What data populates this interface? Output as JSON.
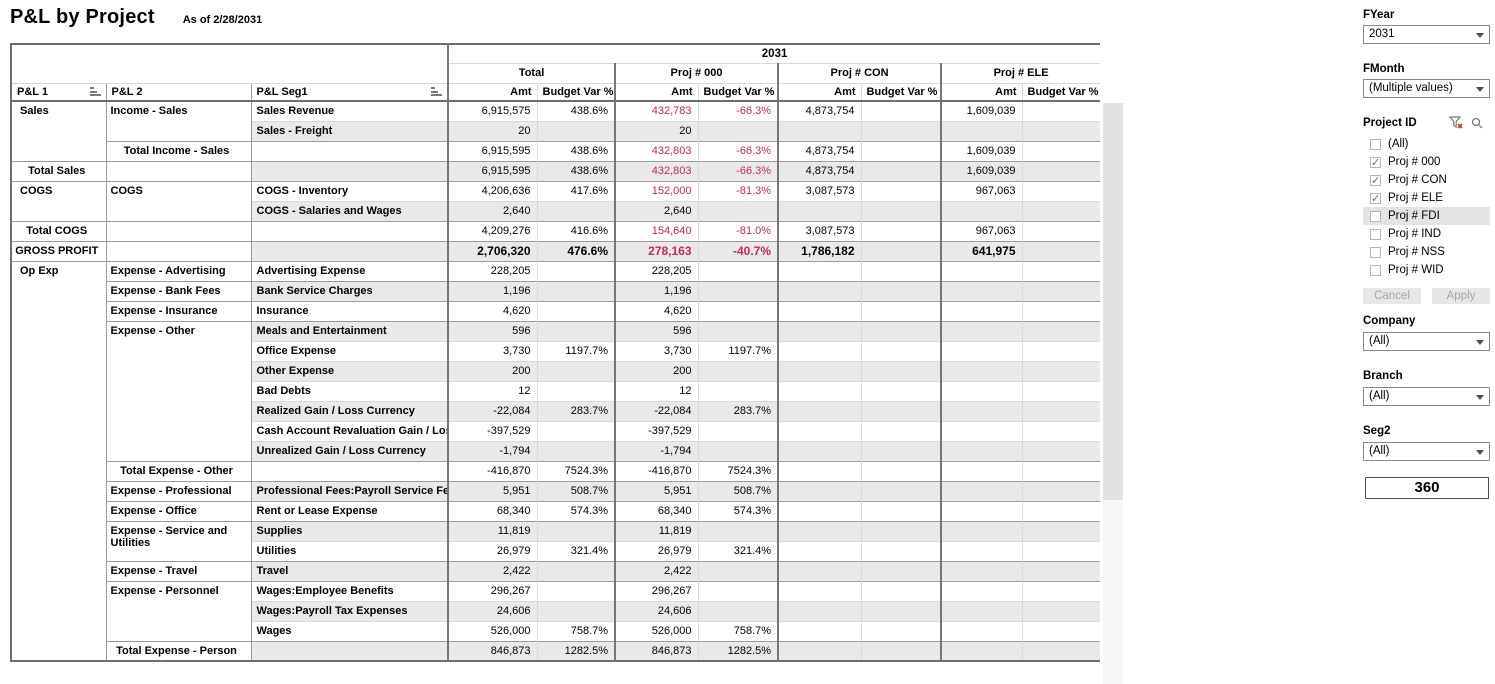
{
  "title": "P&L by Project",
  "subtitle": "As of 2/28/2031",
  "colors": {
    "negative": "#c42c50",
    "band": "#e9e9e9",
    "accent_border": "#767676"
  },
  "table": {
    "year_header": "2031",
    "row_headers": [
      "P&L 1",
      "P&L 2",
      "P&L Seg1"
    ],
    "col_groups": [
      "Total",
      "Proj # 000",
      "Proj # CON",
      "Proj # ELE"
    ],
    "measure_headers": [
      "Amt",
      "Budget Var %"
    ],
    "rows": [
      {
        "pl1": "Sales",
        "pl1_span": 3,
        "pl2": "Income - Sales",
        "pl2_span": 2,
        "seg1": "Sales Revenue",
        "type": "data",
        "shade": false,
        "border": "none",
        "cells": [
          "6,915,575",
          "438.6%",
          "432,783",
          "-66.3%",
          "4,873,754",
          "",
          "1,609,039",
          ""
        ],
        "red": [
          2,
          3
        ]
      },
      {
        "seg1": "Sales - Freight",
        "type": "data",
        "shade": true,
        "border": "none",
        "cells": [
          "20",
          "",
          "20",
          "",
          "",
          "",
          "",
          ""
        ],
        "red": []
      },
      {
        "pl2": "Total  Income - Sales",
        "type": "total2",
        "shade": false,
        "border": "group",
        "cells": [
          "6,915,595",
          "438.6%",
          "432,803",
          "-66.3%",
          "4,873,754",
          "",
          "1,609,039",
          ""
        ],
        "red": [
          2,
          3
        ]
      },
      {
        "pl1": "Total Sales",
        "type": "total1",
        "shade": true,
        "border": "group",
        "cells": [
          "6,915,595",
          "438.6%",
          "432,803",
          "-66.3%",
          "4,873,754",
          "",
          "1,609,039",
          ""
        ],
        "red": [
          2,
          3
        ]
      },
      {
        "pl1": "COGS",
        "pl1_span": 2,
        "pl2": "COGS",
        "pl2_span": 2,
        "seg1": "COGS - Inventory",
        "type": "data",
        "shade": false,
        "border": "group",
        "cells": [
          "4,206,636",
          "417.6%",
          "152,000",
          "-81.3%",
          "3,087,573",
          "",
          "967,063",
          ""
        ],
        "red": [
          2,
          3
        ]
      },
      {
        "seg1": "COGS - Salaries and Wages",
        "type": "data",
        "shade": true,
        "border": "none",
        "cells": [
          "2,640",
          "",
          "2,640",
          "",
          "",
          "",
          "",
          ""
        ],
        "red": []
      },
      {
        "pl1": "Total COGS",
        "type": "total1",
        "shade": false,
        "border": "group",
        "cells": [
          "4,209,276",
          "416.6%",
          "154,640",
          "-81.0%",
          "3,087,573",
          "",
          "967,063",
          ""
        ],
        "red": [
          2,
          3
        ]
      },
      {
        "pl1": "GROSS PROFIT",
        "type": "gross",
        "shade": true,
        "border": "group",
        "cells": [
          "2,706,320",
          "476.6%",
          "278,163",
          "-40.7%",
          "1,786,182",
          "",
          "641,975",
          ""
        ],
        "red": [
          2,
          3
        ]
      },
      {
        "pl1": "Op Exp",
        "pl1_span": 20,
        "pl2": "Expense - Advertising",
        "pl2_span": 1,
        "seg1": "Advertising Expense",
        "type": "data",
        "shade": false,
        "border": "group",
        "cells": [
          "228,205",
          "",
          "228,205",
          "",
          "",
          "",
          "",
          ""
        ],
        "red": []
      },
      {
        "pl2": "Expense - Bank Fees",
        "pl2_span": 1,
        "seg1": "Bank Service Charges",
        "type": "data",
        "shade": true,
        "border": "group",
        "cells": [
          "1,196",
          "",
          "1,196",
          "",
          "",
          "",
          "",
          ""
        ],
        "red": []
      },
      {
        "pl2": "Expense - Insurance",
        "pl2_span": 1,
        "seg1": "Insurance",
        "type": "data",
        "shade": false,
        "border": "group",
        "cells": [
          "4,620",
          "",
          "4,620",
          "",
          "",
          "",
          "",
          ""
        ],
        "red": []
      },
      {
        "pl2": "Expense - Other",
        "pl2_span": 7,
        "seg1": "Meals and Entertainment",
        "type": "data",
        "shade": true,
        "border": "group",
        "cells": [
          "596",
          "",
          "596",
          "",
          "",
          "",
          "",
          ""
        ],
        "red": []
      },
      {
        "seg1": "Office Expense",
        "type": "data",
        "shade": false,
        "border": "none",
        "cells": [
          "3,730",
          "1197.7%",
          "3,730",
          "1197.7%",
          "",
          "",
          "",
          ""
        ],
        "red": []
      },
      {
        "seg1": "Other Expense",
        "type": "data",
        "shade": true,
        "border": "none",
        "cells": [
          "200",
          "",
          "200",
          "",
          "",
          "",
          "",
          ""
        ],
        "red": []
      },
      {
        "seg1": "Bad Debts",
        "type": "data",
        "shade": false,
        "border": "none",
        "cells": [
          "12",
          "",
          "12",
          "",
          "",
          "",
          "",
          ""
        ],
        "red": []
      },
      {
        "seg1": "Realized Gain / Loss Currency",
        "type": "data",
        "shade": true,
        "border": "none",
        "cells": [
          "-22,084",
          "283.7%",
          "-22,084",
          "283.7%",
          "",
          "",
          "",
          ""
        ],
        "red": []
      },
      {
        "seg1": "Cash Account Revaluation Gain / Loss",
        "type": "data",
        "shade": false,
        "border": "none",
        "cells": [
          "-397,529",
          "",
          "-397,529",
          "",
          "",
          "",
          "",
          ""
        ],
        "red": []
      },
      {
        "seg1": "Unrealized Gain / Loss Currency",
        "type": "data",
        "shade": true,
        "border": "none",
        "cells": [
          "-1,794",
          "",
          "-1,794",
          "",
          "",
          "",
          "",
          ""
        ],
        "red": []
      },
      {
        "pl2": "Total  Expense - Other",
        "type": "total2",
        "shade": false,
        "border": "group",
        "cells": [
          "-416,870",
          "7524.3%",
          "-416,870",
          "7524.3%",
          "",
          "",
          "",
          ""
        ],
        "red": []
      },
      {
        "pl2": "Expense - Professional",
        "pl2_span": 1,
        "seg1": "Professional Fees:Payroll Service Fe..",
        "type": "data",
        "shade": true,
        "border": "group",
        "cells": [
          "5,951",
          "508.7%",
          "5,951",
          "508.7%",
          "",
          "",
          "",
          ""
        ],
        "red": []
      },
      {
        "pl2": "Expense - Office",
        "pl2_span": 1,
        "seg1": "Rent or Lease Expense",
        "type": "data",
        "shade": false,
        "border": "group",
        "cells": [
          "68,340",
          "574.3%",
          "68,340",
          "574.3%",
          "",
          "",
          "",
          ""
        ],
        "red": []
      },
      {
        "pl2": "Expense - Service and Utilities",
        "pl2_span": 2,
        "seg1": "Supplies",
        "type": "data",
        "shade": true,
        "border": "group",
        "cells": [
          "11,819",
          "",
          "11,819",
          "",
          "",
          "",
          "",
          ""
        ],
        "red": []
      },
      {
        "seg1": "Utilities",
        "type": "data",
        "shade": false,
        "border": "none",
        "cells": [
          "26,979",
          "321.4%",
          "26,979",
          "321.4%",
          "",
          "",
          "",
          ""
        ],
        "red": []
      },
      {
        "pl2": "Expense - Travel",
        "pl2_span": 1,
        "seg1": "Travel",
        "type": "data",
        "shade": true,
        "border": "group",
        "cells": [
          "2,422",
          "",
          "2,422",
          "",
          "",
          "",
          "",
          ""
        ],
        "red": []
      },
      {
        "pl2": "Expense - Personnel",
        "pl2_span": 3,
        "seg1": "Wages:Employee Benefits",
        "type": "data",
        "shade": false,
        "border": "group",
        "cells": [
          "296,267",
          "",
          "296,267",
          "",
          "",
          "",
          "",
          ""
        ],
        "red": []
      },
      {
        "seg1": "Wages:Payroll Tax Expenses",
        "type": "data",
        "shade": true,
        "border": "none",
        "cells": [
          "24,606",
          "",
          "24,606",
          "",
          "",
          "",
          "",
          ""
        ],
        "red": []
      },
      {
        "seg1": "Wages",
        "type": "data",
        "shade": false,
        "border": "none",
        "cells": [
          "526,000",
          "758.7%",
          "526,000",
          "758.7%",
          "",
          "",
          "",
          ""
        ],
        "red": []
      },
      {
        "pl2": "Total  Expense - Person",
        "type": "total2",
        "shade": true,
        "border": "group",
        "cells": [
          "846,873",
          "1282.5%",
          "846,873",
          "1282.5%",
          "",
          "",
          "",
          ""
        ],
        "red": []
      }
    ]
  },
  "sidebar": {
    "fyear": {
      "label": "FYear",
      "value": "2031"
    },
    "fmonth": {
      "label": "FMonth",
      "value": "(Multiple values)"
    },
    "project_filter": {
      "label": "Project ID",
      "icons": [
        "filter-clear-icon",
        "search-icon",
        "dropdown-caret-icon"
      ],
      "options": [
        {
          "label": "(All)",
          "checked": false,
          "highlighted": false
        },
        {
          "label": "Proj # 000",
          "checked": true,
          "highlighted": false
        },
        {
          "label": "Proj # CON",
          "checked": true,
          "highlighted": false
        },
        {
          "label": "Proj # ELE",
          "checked": true,
          "highlighted": false
        },
        {
          "label": "Proj # FDI",
          "checked": false,
          "highlighted": true
        },
        {
          "label": "Proj # IND",
          "checked": false,
          "highlighted": false
        },
        {
          "label": "Proj # NSS",
          "checked": false,
          "highlighted": false
        },
        {
          "label": "Proj # WID",
          "checked": false,
          "highlighted": false
        }
      ],
      "cancel_label": "Cancel",
      "apply_label": "Apply"
    },
    "company": {
      "label": "Company",
      "value": "(All)"
    },
    "branch": {
      "label": "Branch",
      "value": "(All)"
    },
    "seg2": {
      "label": "Seg2",
      "value": "(All)"
    },
    "counter": "360"
  }
}
